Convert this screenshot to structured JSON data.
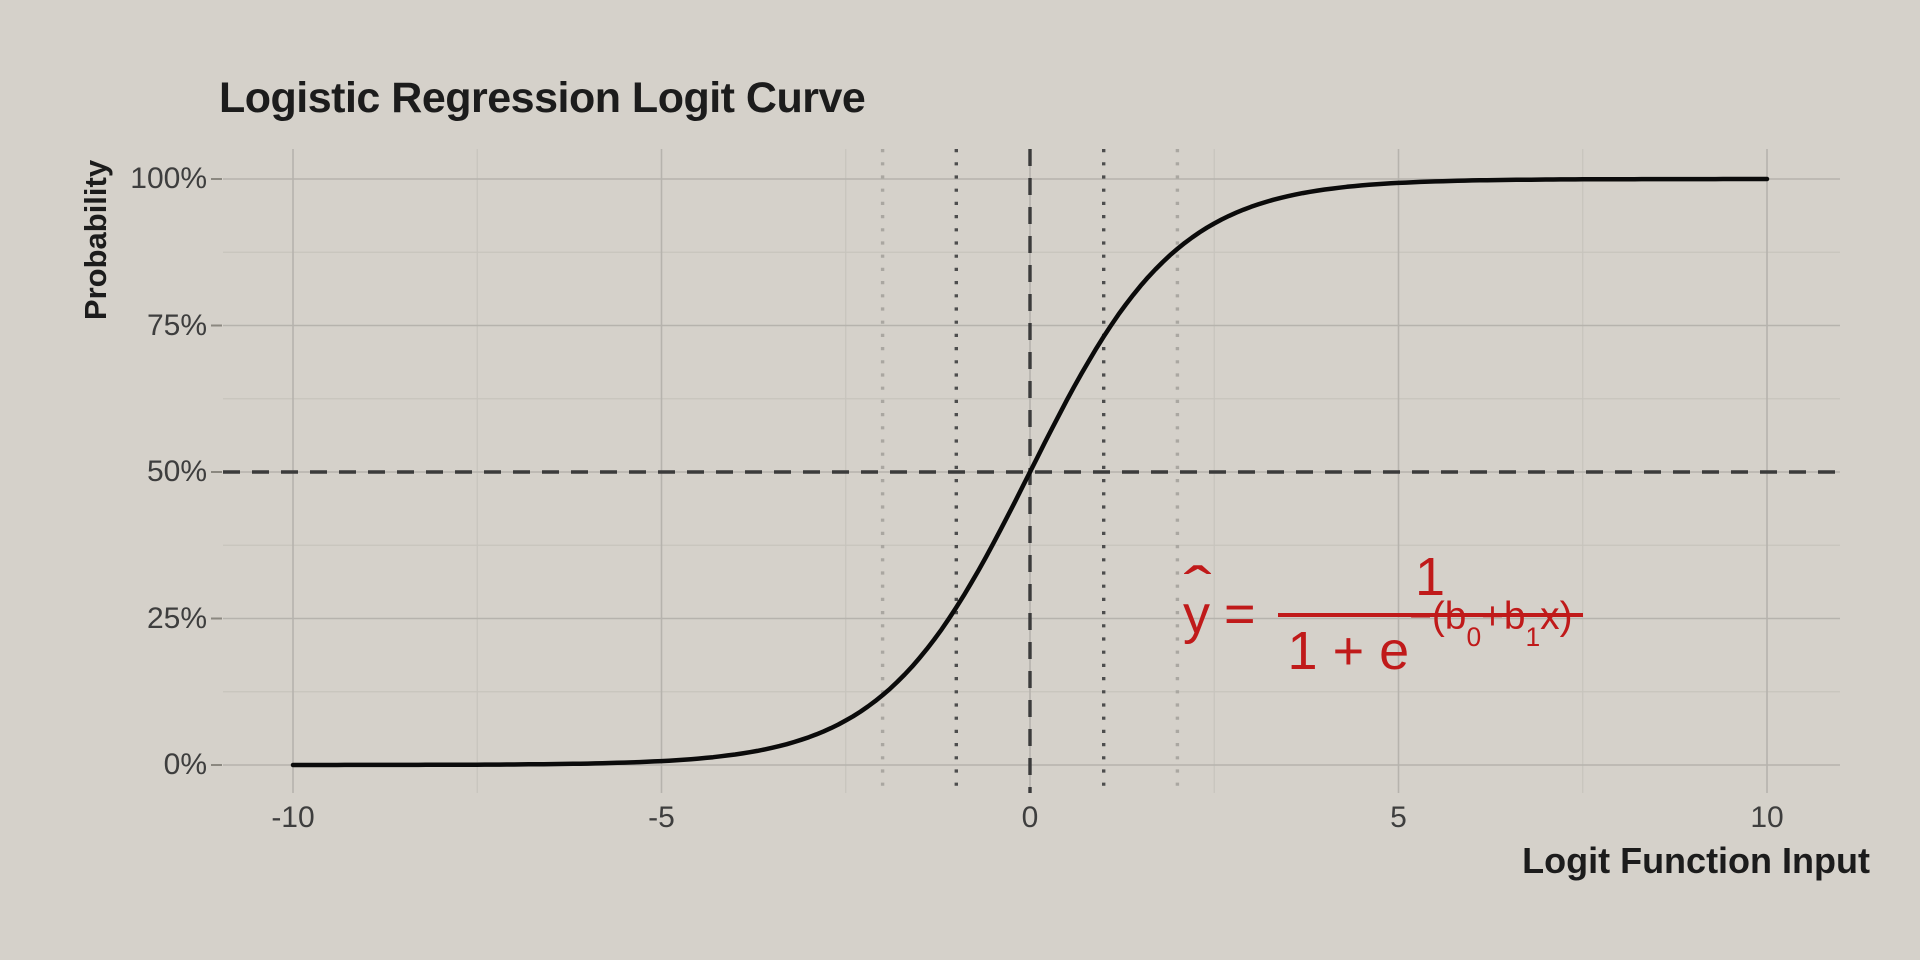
{
  "chart_data": {
    "type": "line",
    "title": "Logistic Regression Logit Curve",
    "x_axis": {
      "title": "Logit Function Input",
      "range": [
        -10,
        10
      ],
      "majors": [
        -10,
        -5,
        0,
        5,
        10
      ],
      "minors": [
        -7.5,
        -2.5,
        2.5,
        7.5
      ],
      "tick_labels": [
        "-10",
        "-5",
        "0",
        "5",
        "10"
      ]
    },
    "y_axis": {
      "title": "Probability",
      "range": [
        0,
        1
      ],
      "majors": [
        0,
        0.25,
        0.5,
        0.75,
        1
      ],
      "minors": [
        0.125,
        0.375,
        0.625,
        0.875
      ],
      "tick_labels": [
        "0%",
        "25%",
        "50%",
        "75%",
        "100%"
      ]
    },
    "series": [
      {
        "name": "logistic-sigmoid-curve",
        "function": "y = 1 / (1 + exp(-x))",
        "k": 1,
        "x0": 0,
        "points": [
          [
            -10,
            0.0
          ],
          [
            -5,
            0.0067
          ],
          [
            -2,
            0.1192
          ],
          [
            -1,
            0.2689
          ],
          [
            0,
            0.5
          ],
          [
            1,
            0.7311
          ],
          [
            2,
            0.8808
          ],
          [
            5,
            0.9933
          ],
          [
            10,
            1.0
          ]
        ]
      }
    ],
    "reference_lines": [
      {
        "axis": "x",
        "value": -2,
        "style": "dotted_light"
      },
      {
        "axis": "x",
        "value": 2,
        "style": "dotted_light"
      },
      {
        "axis": "x",
        "value": -1,
        "style": "dotted_dark"
      },
      {
        "axis": "x",
        "value": 1,
        "style": "dotted_dark"
      },
      {
        "axis": "x",
        "value": 0,
        "style": "dashed"
      },
      {
        "axis": "y",
        "value": 0.5,
        "style": "dashed"
      }
    ],
    "grid": "on",
    "legend": "none",
    "style": {
      "background": "#d5d1ca",
      "text": "#1c1c1c",
      "tick_text": "#3e3e3e",
      "grid_major": "#b6b3ad",
      "grid_minor": "#c7c4bd",
      "tick_mark": "#8b8880",
      "curve": "#0b0b0b",
      "dashed": "#3b3b3b",
      "dotted_dark": "#4d4d4d",
      "dotted_light": "#aaa7a1",
      "annotation_red": "#c01a1a"
    }
  },
  "formula": {
    "hat": "ˆ",
    "base": "y",
    "eq": "=",
    "numerator": "1",
    "den_base": "1 + e",
    "exp_open": "−(b",
    "exp_sub0": "0",
    "exp_mid": "+b",
    "exp_sub1": "1",
    "exp_close": "x)"
  }
}
